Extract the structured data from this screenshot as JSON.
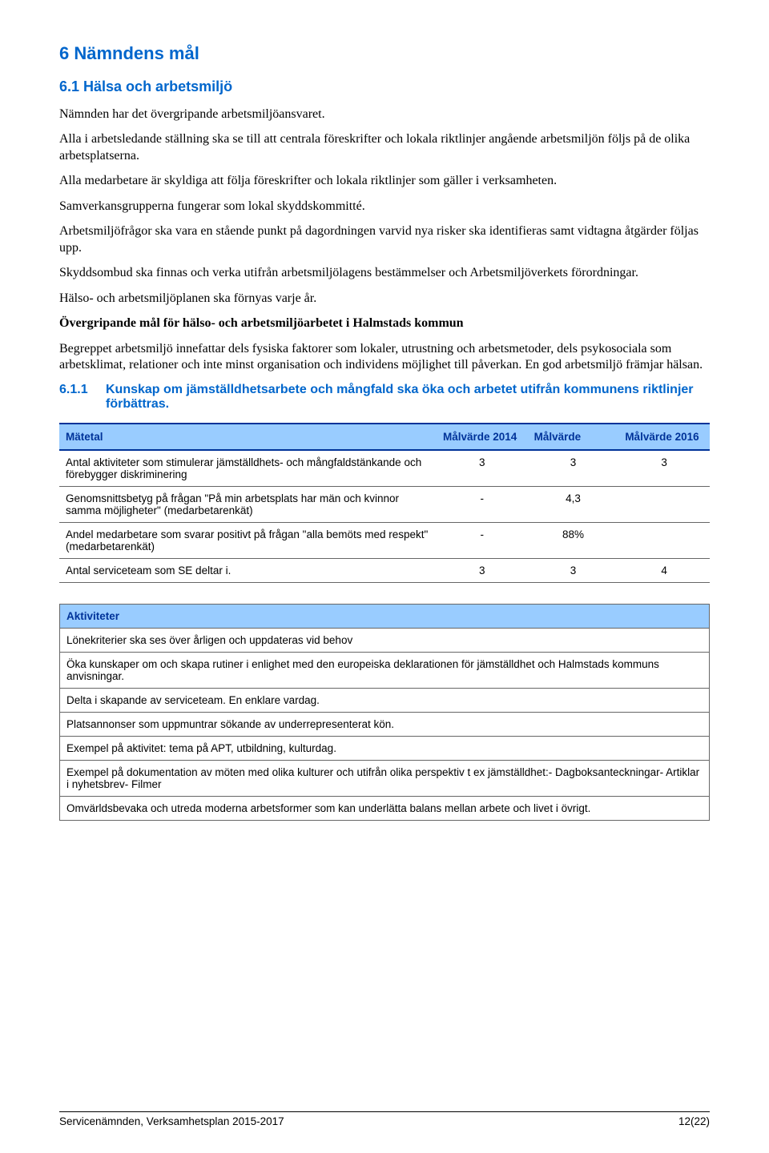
{
  "colors": {
    "heading_blue": "#0066cc",
    "table_header_bg": "#99ccff",
    "table_header_text": "#003399",
    "rule_dark": "#003399",
    "cell_border": "#666666",
    "page_bg": "#ffffff",
    "text": "#000000"
  },
  "typography": {
    "body_font": "Times New Roman",
    "heading_font": "Verdana",
    "table_font": "Arial",
    "body_size_pt": 12,
    "h1_size_pt": 17,
    "h2_size_pt": 14,
    "h3_size_pt": 12,
    "table_size_pt": 10
  },
  "h1": "6 Nämndens mål",
  "h2": "6.1  Hälsa och arbetsmiljö",
  "paragraphs": {
    "p1": "Nämnden har det övergripande arbetsmiljöansvaret.",
    "p2": "Alla i arbetsledande ställning ska se till att centrala föreskrifter och lokala riktlinjer angående arbetsmiljön följs på de olika arbetsplatserna.",
    "p3": "Alla medarbetare är skyldiga att följa föreskrifter och lokala riktlinjer som gäller i verksamheten.",
    "p4": "Samverkansgrupperna fungerar som lokal skyddskommitté.",
    "p5": "Arbetsmiljöfrågor ska vara en stående punkt på dagordningen varvid nya risker ska identifieras samt vidtagna åtgärder följas upp.",
    "p6": "Skyddsombud ska finnas och verka utifrån arbetsmiljölagens bestämmelser och Arbetsmiljöverkets förordningar.",
    "p7": "Hälso- och arbetsmiljöplanen ska förnyas varje år.",
    "p8_bold": "Övergripande mål för hälso- och arbetsmiljöarbetet i Halmstads kommun",
    "p9": "Begreppet arbetsmiljö innefattar dels fysiska faktorer som lokaler, utrustning och arbetsmetoder, dels psykosociala som arbetsklimat, relationer och inte minst organisation och individens möjlighet till påverkan. En god arbetsmiljö främjar hälsan."
  },
  "h3": {
    "num": "6.1.1",
    "text": "Kunskap om jämställdhetsarbete och mångfald ska öka och arbetet utifrån kommunens riktlinjer förbättras."
  },
  "matetal": {
    "type": "table",
    "header_bg": "#99ccff",
    "header_text_color": "#003399",
    "top_rule_color": "#003399",
    "columns": [
      {
        "label": "Mätetal",
        "align": "left"
      },
      {
        "label": "Målvärde 2014",
        "align": "center"
      },
      {
        "label": "Målvärde",
        "align": "center"
      },
      {
        "label": "Målvärde 2016",
        "align": "center"
      }
    ],
    "rows": [
      {
        "label": "Antal aktiviteter som stimulerar jämställdhets- och mångfaldstänkande och förebygger diskriminering",
        "v2014": "3",
        "v": "3",
        "v2016": "3"
      },
      {
        "label": "Genomsnittsbetyg på frågan \"På min arbetsplats har män och kvinnor samma möjligheter\" (medarbetarenkät)",
        "v2014": "-",
        "v": "4,3",
        "v2016": ""
      },
      {
        "label": "Andel medarbetare som svarar positivt på frågan  \"alla bemöts med respekt\" (medarbetarenkät)",
        "v2014": "-",
        "v": "88%",
        "v2016": ""
      },
      {
        "label": "Antal serviceteam som SE deltar i.",
        "v2014": "3",
        "v": "3",
        "v2016": "4"
      }
    ]
  },
  "aktiviteter": {
    "type": "table",
    "header": "Aktiviteter",
    "header_bg": "#99ccff",
    "header_text_color": "#003399",
    "rows": [
      "Lönekriterier ska ses över årligen och uppdateras vid behov",
      "Öka kunskaper om och skapa rutiner i enlighet med den europeiska deklarationen för jämställdhet och Halmstads kommuns anvisningar.",
      "Delta i skapande av serviceteam. En enklare vardag.",
      "Platsannonser som uppmuntrar sökande av underrepresenterat kön.",
      "Exempel på aktivitet: tema på APT, utbildning, kulturdag.",
      "Exempel på dokumentation av möten med olika kulturer och utifrån olika perspektiv t ex jämställdhet:- Dagboksanteckningar- Artiklar i nyhetsbrev- Filmer",
      "Omvärldsbevaka och utreda moderna arbetsformer som kan underlätta balans mellan arbete och livet i övrigt."
    ]
  },
  "footer": {
    "left": "Servicenämnden, Verksamhetsplan 2015-2017",
    "right": "12(22)"
  }
}
